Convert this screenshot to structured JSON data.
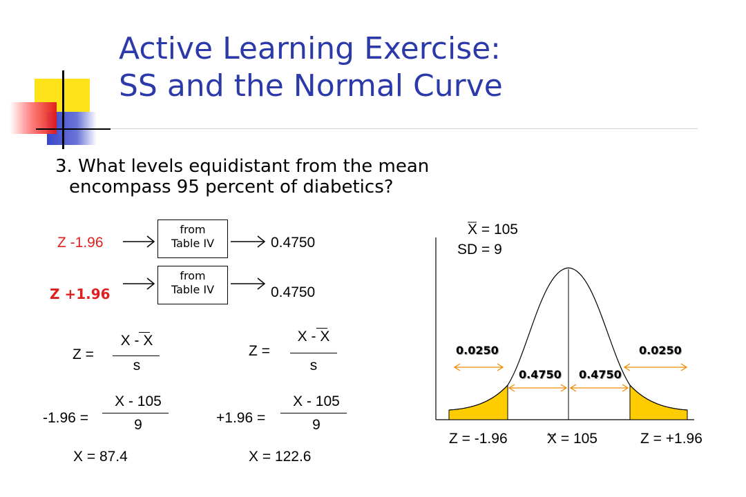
{
  "slide": {
    "title_line1": "Active Learning Exercise:",
    "title_line2": "SS and the Normal Curve",
    "question_line1": "3. What levels equidistant from the mean",
    "question_line2": "encompass 95 percent of diabetics?"
  },
  "lookup": {
    "row1": {
      "z": "Z -1.96",
      "box_line1": "from",
      "box_line2": "Table IV",
      "result": "0.4750"
    },
    "row2": {
      "z": "Z +1.96",
      "box_line1": "from",
      "box_line2": "Table IV",
      "result": "0.4750"
    }
  },
  "formulas": {
    "left": {
      "z_label": "Z =",
      "numerator": "X - X",
      "denominator": "s",
      "eq_label": "-1.96 =",
      "eq_numerator": "X - 105",
      "eq_denominator": "9",
      "answer": "X = 87.4"
    },
    "right": {
      "z_label": "Z =",
      "numerator": "X - X",
      "denominator": "s",
      "eq_label": "+1.96 =",
      "eq_numerator": "X - 105",
      "eq_denominator": "9",
      "answer": "X = 122.6"
    }
  },
  "curve": {
    "mean_label": "X = 105",
    "sd_label": "SD = 9",
    "left_tail": "0.0250",
    "right_tail": "0.0250",
    "left_inner": "0.4750",
    "right_inner": "0.4750",
    "axis_left": "Z = -1.96",
    "axis_mid": "X = 105",
    "axis_right": "Z = +1.96",
    "tail_color": "#ffcc00"
  },
  "colors": {
    "title": "#2b3aa8",
    "highlight_red": "#e02020"
  }
}
